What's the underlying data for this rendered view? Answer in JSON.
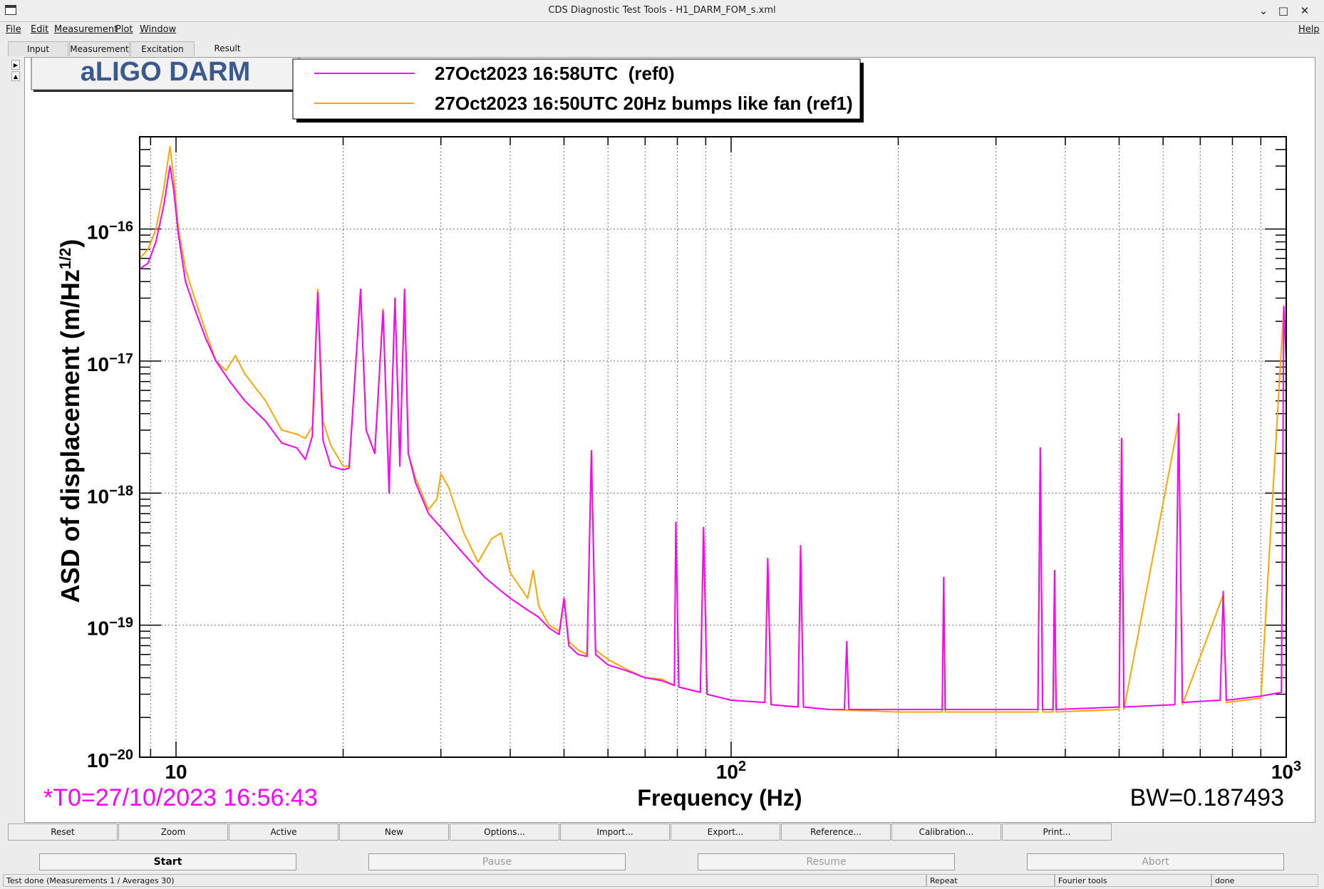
{
  "window": {
    "title": "CDS Diagnostic Test Tools - H1_DARM_FOM_s.xml",
    "minimize": "⌄",
    "maximize": "□",
    "close": "✕"
  },
  "menu": {
    "file": "File",
    "edit": "Edit",
    "measurement": "Measurement",
    "plot": "Plot",
    "window": "Window",
    "help": "Help"
  },
  "tabs": {
    "input": "Input",
    "measurement": "Measurement",
    "excitation": "Excitation",
    "result": "Result",
    "active": "Result"
  },
  "plot": {
    "title_box": "aLIGO DARM",
    "t0_label": "*T0=27/10/2023 16:56:43",
    "bw_label": "BW=0.187493"
  },
  "chart_data": {
    "type": "line",
    "title": "aLIGO DARM",
    "xlabel": "Frequency (Hz)",
    "ylabel": "ASD of displacement (m/Hz^(1/2))",
    "x_scale": "log",
    "y_scale": "log",
    "xlim": [
      8.6,
      1000
    ],
    "ylim": [
      1e-20,
      5e-16
    ],
    "x_ticks": [
      {
        "v": 10,
        "label": "10"
      },
      {
        "v": 100,
        "label": "10^2"
      },
      {
        "v": 1000,
        "label": "10^3"
      }
    ],
    "y_ticks": [
      {
        "v": 1e-20,
        "label": "10^-20"
      },
      {
        "v": 1e-19,
        "label": "10^-19"
      },
      {
        "v": 1e-18,
        "label": "10^-18"
      },
      {
        "v": 1e-17,
        "label": "10^-17"
      },
      {
        "v": 1e-16,
        "label": "10^-16"
      }
    ],
    "grid": true,
    "legend_placement": "top",
    "series": [
      {
        "name": "27Oct2023 16:58UTC  (ref0)",
        "color": "#ff00ff",
        "points": [
          [
            8.6,
            5e-17
          ],
          [
            8.9,
            5.5e-17
          ],
          [
            9.2,
            8e-17
          ],
          [
            9.5,
            1.5e-16
          ],
          [
            9.75,
            3e-16
          ],
          [
            9.9,
            2e-16
          ],
          [
            10.1,
            9e-17
          ],
          [
            10.4,
            4e-17
          ],
          [
            10.8,
            2.5e-17
          ],
          [
            11.3,
            1.5e-17
          ],
          [
            11.8,
            1e-17
          ],
          [
            12.5,
            7e-18
          ],
          [
            13.3,
            5e-18
          ],
          [
            14.5,
            3.5e-18
          ],
          [
            15.5,
            2.4e-18
          ],
          [
            16.5,
            2.2e-18
          ],
          [
            17.1,
            1.8e-18
          ],
          [
            17.6,
            2.7e-18
          ],
          [
            18.0,
            3.3e-17
          ],
          [
            18.4,
            2.5e-18
          ],
          [
            19.0,
            1.6e-18
          ],
          [
            20.0,
            1.5e-18
          ],
          [
            20.5,
            1.55e-18
          ],
          [
            21.5,
            3.5e-17
          ],
          [
            22.0,
            3e-18
          ],
          [
            22.8,
            2e-18
          ],
          [
            23.6,
            2.4e-17
          ],
          [
            24.2,
            1e-18
          ],
          [
            24.8,
            3e-17
          ],
          [
            25.3,
            1.6e-18
          ],
          [
            25.8,
            3.5e-17
          ],
          [
            26.2,
            2e-18
          ],
          [
            27,
            1.2e-18
          ],
          [
            28.5,
            7e-19
          ],
          [
            30,
            5.5e-19
          ],
          [
            32,
            4e-19
          ],
          [
            34,
            3e-19
          ],
          [
            36,
            2.3e-19
          ],
          [
            38,
            1.9e-19
          ],
          [
            40,
            1.6e-19
          ],
          [
            43,
            1.3e-19
          ],
          [
            45,
            1.15e-19
          ],
          [
            47,
            9.5e-20
          ],
          [
            49,
            8.5e-20
          ],
          [
            50,
            1.6e-19
          ],
          [
            51,
            7e-20
          ],
          [
            53,
            6e-20
          ],
          [
            55,
            5.8e-20
          ],
          [
            56,
            2.1e-18
          ],
          [
            57,
            6e-20
          ],
          [
            60,
            5e-20
          ],
          [
            65,
            4.5e-20
          ],
          [
            70,
            4e-20
          ],
          [
            75,
            3.8e-20
          ],
          [
            79,
            3.5e-20
          ],
          [
            79.5,
            6e-19
          ],
          [
            80.5,
            3.4e-20
          ],
          [
            88,
            3.1e-20
          ],
          [
            89.2,
            5.5e-19
          ],
          [
            90.5,
            3e-20
          ],
          [
            100,
            2.7e-20
          ],
          [
            115,
            2.6e-20
          ],
          [
            116.4,
            3.2e-19
          ],
          [
            118,
            2.5e-20
          ],
          [
            132,
            2.4e-20
          ],
          [
            133.4,
            4e-19
          ],
          [
            135,
            2.4e-20
          ],
          [
            150,
            2.3e-20
          ],
          [
            160,
            2.3e-20
          ],
          [
            161.5,
            7.5e-20
          ],
          [
            163,
            2.3e-20
          ],
          [
            200,
            2.3e-20
          ],
          [
            240,
            2.3e-20
          ],
          [
            241.5,
            2.3e-19
          ],
          [
            243,
            2.3e-20
          ],
          [
            300,
            2.3e-20
          ],
          [
            350,
            2.3e-20
          ],
          [
            357,
            2.3e-20
          ],
          [
            360.5,
            2.2e-18
          ],
          [
            364,
            2.3e-20
          ],
          [
            380,
            2.3e-20
          ],
          [
            382.5,
            2.6e-19
          ],
          [
            385,
            2.3e-20
          ],
          [
            500,
            2.4e-20
          ],
          [
            505,
            2.6e-18
          ],
          [
            510,
            2.4e-20
          ],
          [
            630,
            2.5e-20
          ],
          [
            640,
            4e-18
          ],
          [
            650,
            2.6e-20
          ],
          [
            760,
            2.7e-20
          ],
          [
            770,
            1.8e-19
          ],
          [
            780,
            2.7e-20
          ],
          [
            900,
            2.9e-20
          ],
          [
            980,
            3.1e-20
          ],
          [
            990,
            2.6e-17
          ],
          [
            1000,
            1e-17
          ]
        ]
      },
      {
        "name": "27Oct2023 16:50UTC 20Hz bumps like fan (ref1)",
        "color": "#ffa500",
        "points": [
          [
            8.6,
            6e-17
          ],
          [
            8.9,
            7e-17
          ],
          [
            9.2,
            1e-16
          ],
          [
            9.5,
            2e-16
          ],
          [
            9.75,
            4.2e-16
          ],
          [
            9.9,
            2.5e-16
          ],
          [
            10.1,
            1e-16
          ],
          [
            10.4,
            5e-17
          ],
          [
            10.8,
            3e-17
          ],
          [
            11.3,
            1.7e-17
          ],
          [
            11.8,
            1e-17
          ],
          [
            12.3,
            8.5e-18
          ],
          [
            12.8,
            1.1e-17
          ],
          [
            13.3,
            8e-18
          ],
          [
            14.5,
            5e-18
          ],
          [
            15.5,
            3e-18
          ],
          [
            16.5,
            2.8e-18
          ],
          [
            17.1,
            2.6e-18
          ],
          [
            17.6,
            3.2e-18
          ],
          [
            18.0,
            3.5e-17
          ],
          [
            18.4,
            3.5e-18
          ],
          [
            19.0,
            2.3e-18
          ],
          [
            20.0,
            1.6e-18
          ],
          [
            20.5,
            1.6e-18
          ],
          [
            21.5,
            3.5e-17
          ],
          [
            22.0,
            3e-18
          ],
          [
            22.8,
            2e-18
          ],
          [
            23.6,
            2.5e-17
          ],
          [
            24.2,
            1.2e-18
          ],
          [
            24.8,
            3e-17
          ],
          [
            25.3,
            1.8e-18
          ],
          [
            25.8,
            3.5e-17
          ],
          [
            26.2,
            2e-18
          ],
          [
            27,
            1.3e-18
          ],
          [
            28.5,
            7.5e-19
          ],
          [
            29.5,
            9e-19
          ],
          [
            30,
            1.4e-18
          ],
          [
            31,
            1.1e-18
          ],
          [
            33,
            5e-19
          ],
          [
            35,
            3e-19
          ],
          [
            37,
            4.5e-19
          ],
          [
            38.5,
            5e-19
          ],
          [
            40,
            2.5e-19
          ],
          [
            43,
            1.6e-19
          ],
          [
            44,
            2.6e-19
          ],
          [
            45,
            1.4e-19
          ],
          [
            47,
            1e-19
          ],
          [
            49,
            9e-20
          ],
          [
            50,
            1.6e-19
          ],
          [
            51,
            7.5e-20
          ],
          [
            53,
            6.5e-20
          ],
          [
            55,
            6e-20
          ],
          [
            56,
            2.1e-18
          ],
          [
            57,
            6.5e-20
          ],
          [
            60,
            5.5e-20
          ],
          [
            65,
            4.6e-20
          ],
          [
            70,
            4e-20
          ],
          [
            75,
            3.9e-20
          ],
          [
            79,
            3.5e-20
          ],
          [
            79.5,
            6e-19
          ],
          [
            80.5,
            3.4e-20
          ],
          [
            88,
            3.1e-20
          ],
          [
            89.2,
            5.5e-19
          ],
          [
            90.5,
            3e-20
          ],
          [
            100,
            2.7e-20
          ],
          [
            115,
            2.6e-20
          ],
          [
            116.4,
            3.2e-19
          ],
          [
            118,
            2.5e-20
          ],
          [
            132,
            2.4e-20
          ],
          [
            133.4,
            4e-19
          ],
          [
            135,
            2.4e-20
          ],
          [
            150,
            2.3e-20
          ],
          [
            200,
            2.2e-20
          ],
          [
            240,
            2.2e-20
          ],
          [
            241.5,
            2.3e-19
          ],
          [
            243,
            2.2e-20
          ],
          [
            300,
            2.2e-20
          ],
          [
            357,
            2.2e-20
          ],
          [
            360.5,
            2.2e-18
          ],
          [
            364,
            2.2e-20
          ],
          [
            380,
            2.2e-20
          ],
          [
            382.5,
            2.6e-19
          ],
          [
            385,
            2.2e-20
          ],
          [
            500,
            2.3e-20
          ],
          [
            505,
            2.6e-18
          ],
          [
            510,
            2.3e-20
          ],
          [
            640,
            3.5e-18
          ],
          [
            650,
            2.5e-20
          ],
          [
            770,
            1.7e-19
          ],
          [
            780,
            2.6e-20
          ],
          [
            900,
            2.8e-20
          ],
          [
            990,
            2.6e-17
          ],
          [
            1000,
            1e-17
          ]
        ]
      }
    ]
  },
  "buttons": {
    "reset": "Reset",
    "zoom": "Zoom",
    "active": "Active",
    "new": "New",
    "options": "Options...",
    "import": "Import...",
    "export": "Export...",
    "reference": "Reference...",
    "calibration": "Calibration...",
    "print": "Print..."
  },
  "controls": {
    "start": "Start",
    "pause": "Pause",
    "resume": "Resume",
    "abort": "Abort"
  },
  "status": {
    "message": "Test done (Measurements 1 / Averages 30)",
    "repeat": "Repeat",
    "tool": "Fourier tools",
    "state": "done"
  }
}
